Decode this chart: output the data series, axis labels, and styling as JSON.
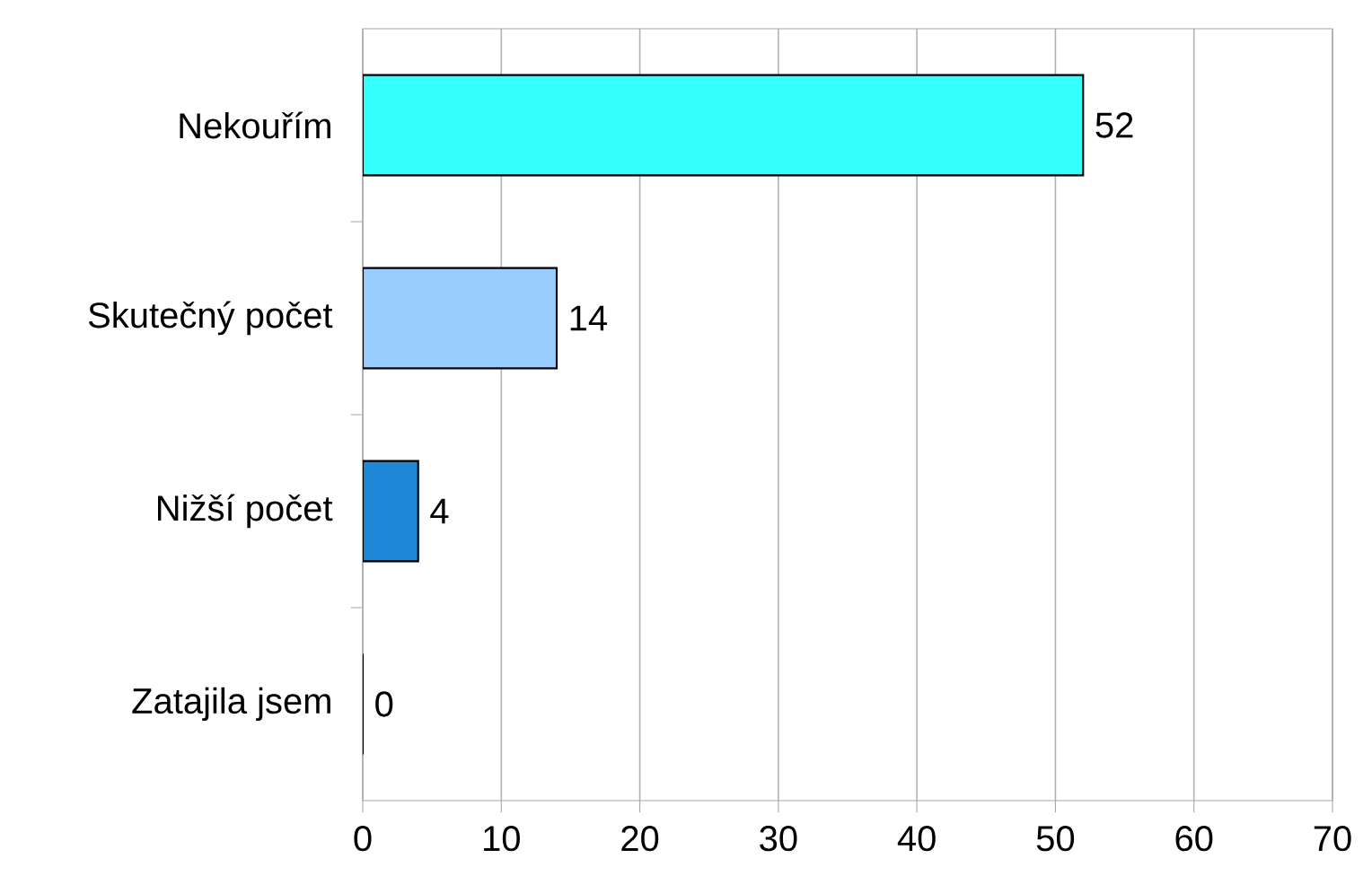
{
  "chart_data": {
    "type": "bar",
    "orientation": "horizontal",
    "categories": [
      "Nekouřím",
      "Skutečný počet",
      "Nižší počet",
      "Zatajila jsem"
    ],
    "values": [
      52,
      14,
      4,
      0
    ],
    "colors": [
      "#33ffff",
      "#99ccff",
      "#1e88d6",
      "#1e5fa0"
    ],
    "xlim": [
      0,
      70
    ],
    "xticks": [
      0,
      10,
      20,
      30,
      40,
      50,
      60,
      70
    ],
    "grid": "x",
    "data_labels": true
  }
}
